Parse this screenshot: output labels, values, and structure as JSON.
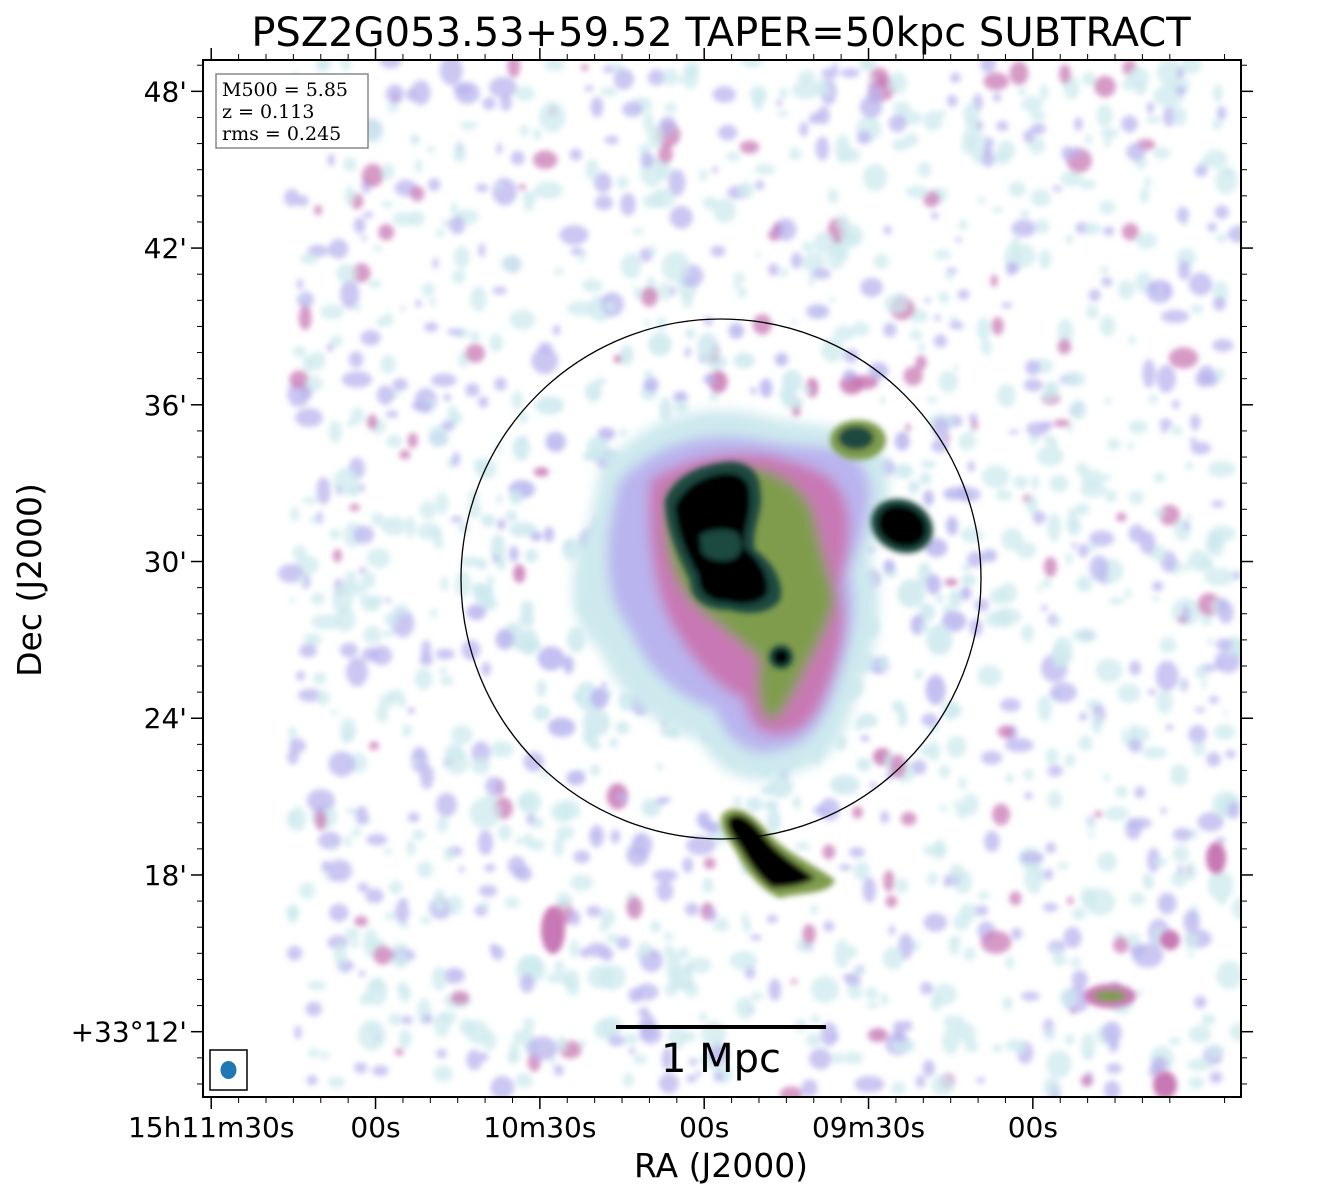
{
  "chart_data": {
    "type": "heatmap",
    "title": "PSZ2G053.53+59.52 TAPER=50kpc SUBTRACT",
    "xlabel": "RA (J2000)",
    "ylabel": "Dec (J2000)",
    "x_ticks": [
      "15h11m30s",
      "00s",
      "10m30s",
      "00s",
      "09m30s",
      "00s"
    ],
    "y_ticks": [
      "48'",
      "42'",
      "36'",
      "30'",
      "24'",
      "18'",
      "+33°12'"
    ],
    "y_tick_arcmin": [
      48,
      42,
      36,
      30,
      24,
      18,
      12
    ],
    "ylim_arcmin": [
      9.5,
      49.2
    ],
    "x_tick_seconds_from_first": [
      0,
      30,
      60,
      90,
      120,
      150
    ],
    "xlim_seconds_from_first": [
      -1.5,
      188
    ],
    "info_box": [
      "M500 = 5.85",
      "z = 0.113",
      "rms = 0.245"
    ],
    "scale_bar_label": "1 Mpc",
    "colormap": [
      "#ffffff",
      "#cde9ee",
      "#b9b4ee",
      "#c878b4",
      "#7f9c4e",
      "#1f4a3f",
      "#000000"
    ],
    "beam_color": "#1f77b4",
    "grid": false
  }
}
